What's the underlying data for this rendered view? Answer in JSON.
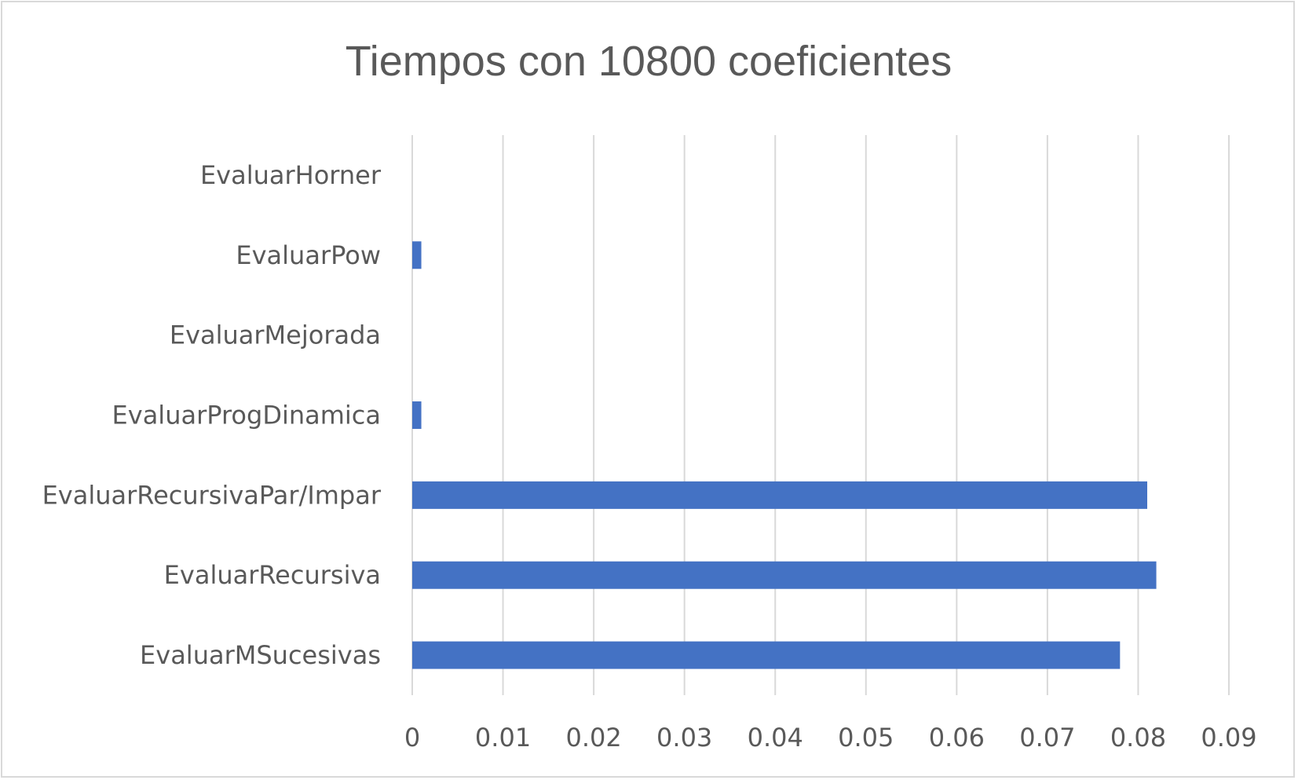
{
  "chart_data": {
    "type": "bar",
    "orientation": "horizontal",
    "title": "Tiempos con 10800 coeficientes",
    "xlabel": "",
    "ylabel": "",
    "categories": [
      "EvaluarHorner",
      "EvaluarPow",
      "EvaluarMejorada",
      "EvaluarProgDinamica",
      "EvaluarRecursivaPar/Impar",
      "EvaluarRecursiva",
      "EvaluarMSucesivas"
    ],
    "values": [
      0,
      0.001,
      0,
      0.001,
      0.081,
      0.082,
      0.078
    ],
    "xlim": [
      0,
      0.09
    ],
    "xticks": [
      "0",
      "0.01",
      "0.02",
      "0.03",
      "0.04",
      "0.05",
      "0.06",
      "0.07",
      "0.08",
      "0.09"
    ],
    "grid": true,
    "legend": "none",
    "bar_color": "#4472c4"
  }
}
